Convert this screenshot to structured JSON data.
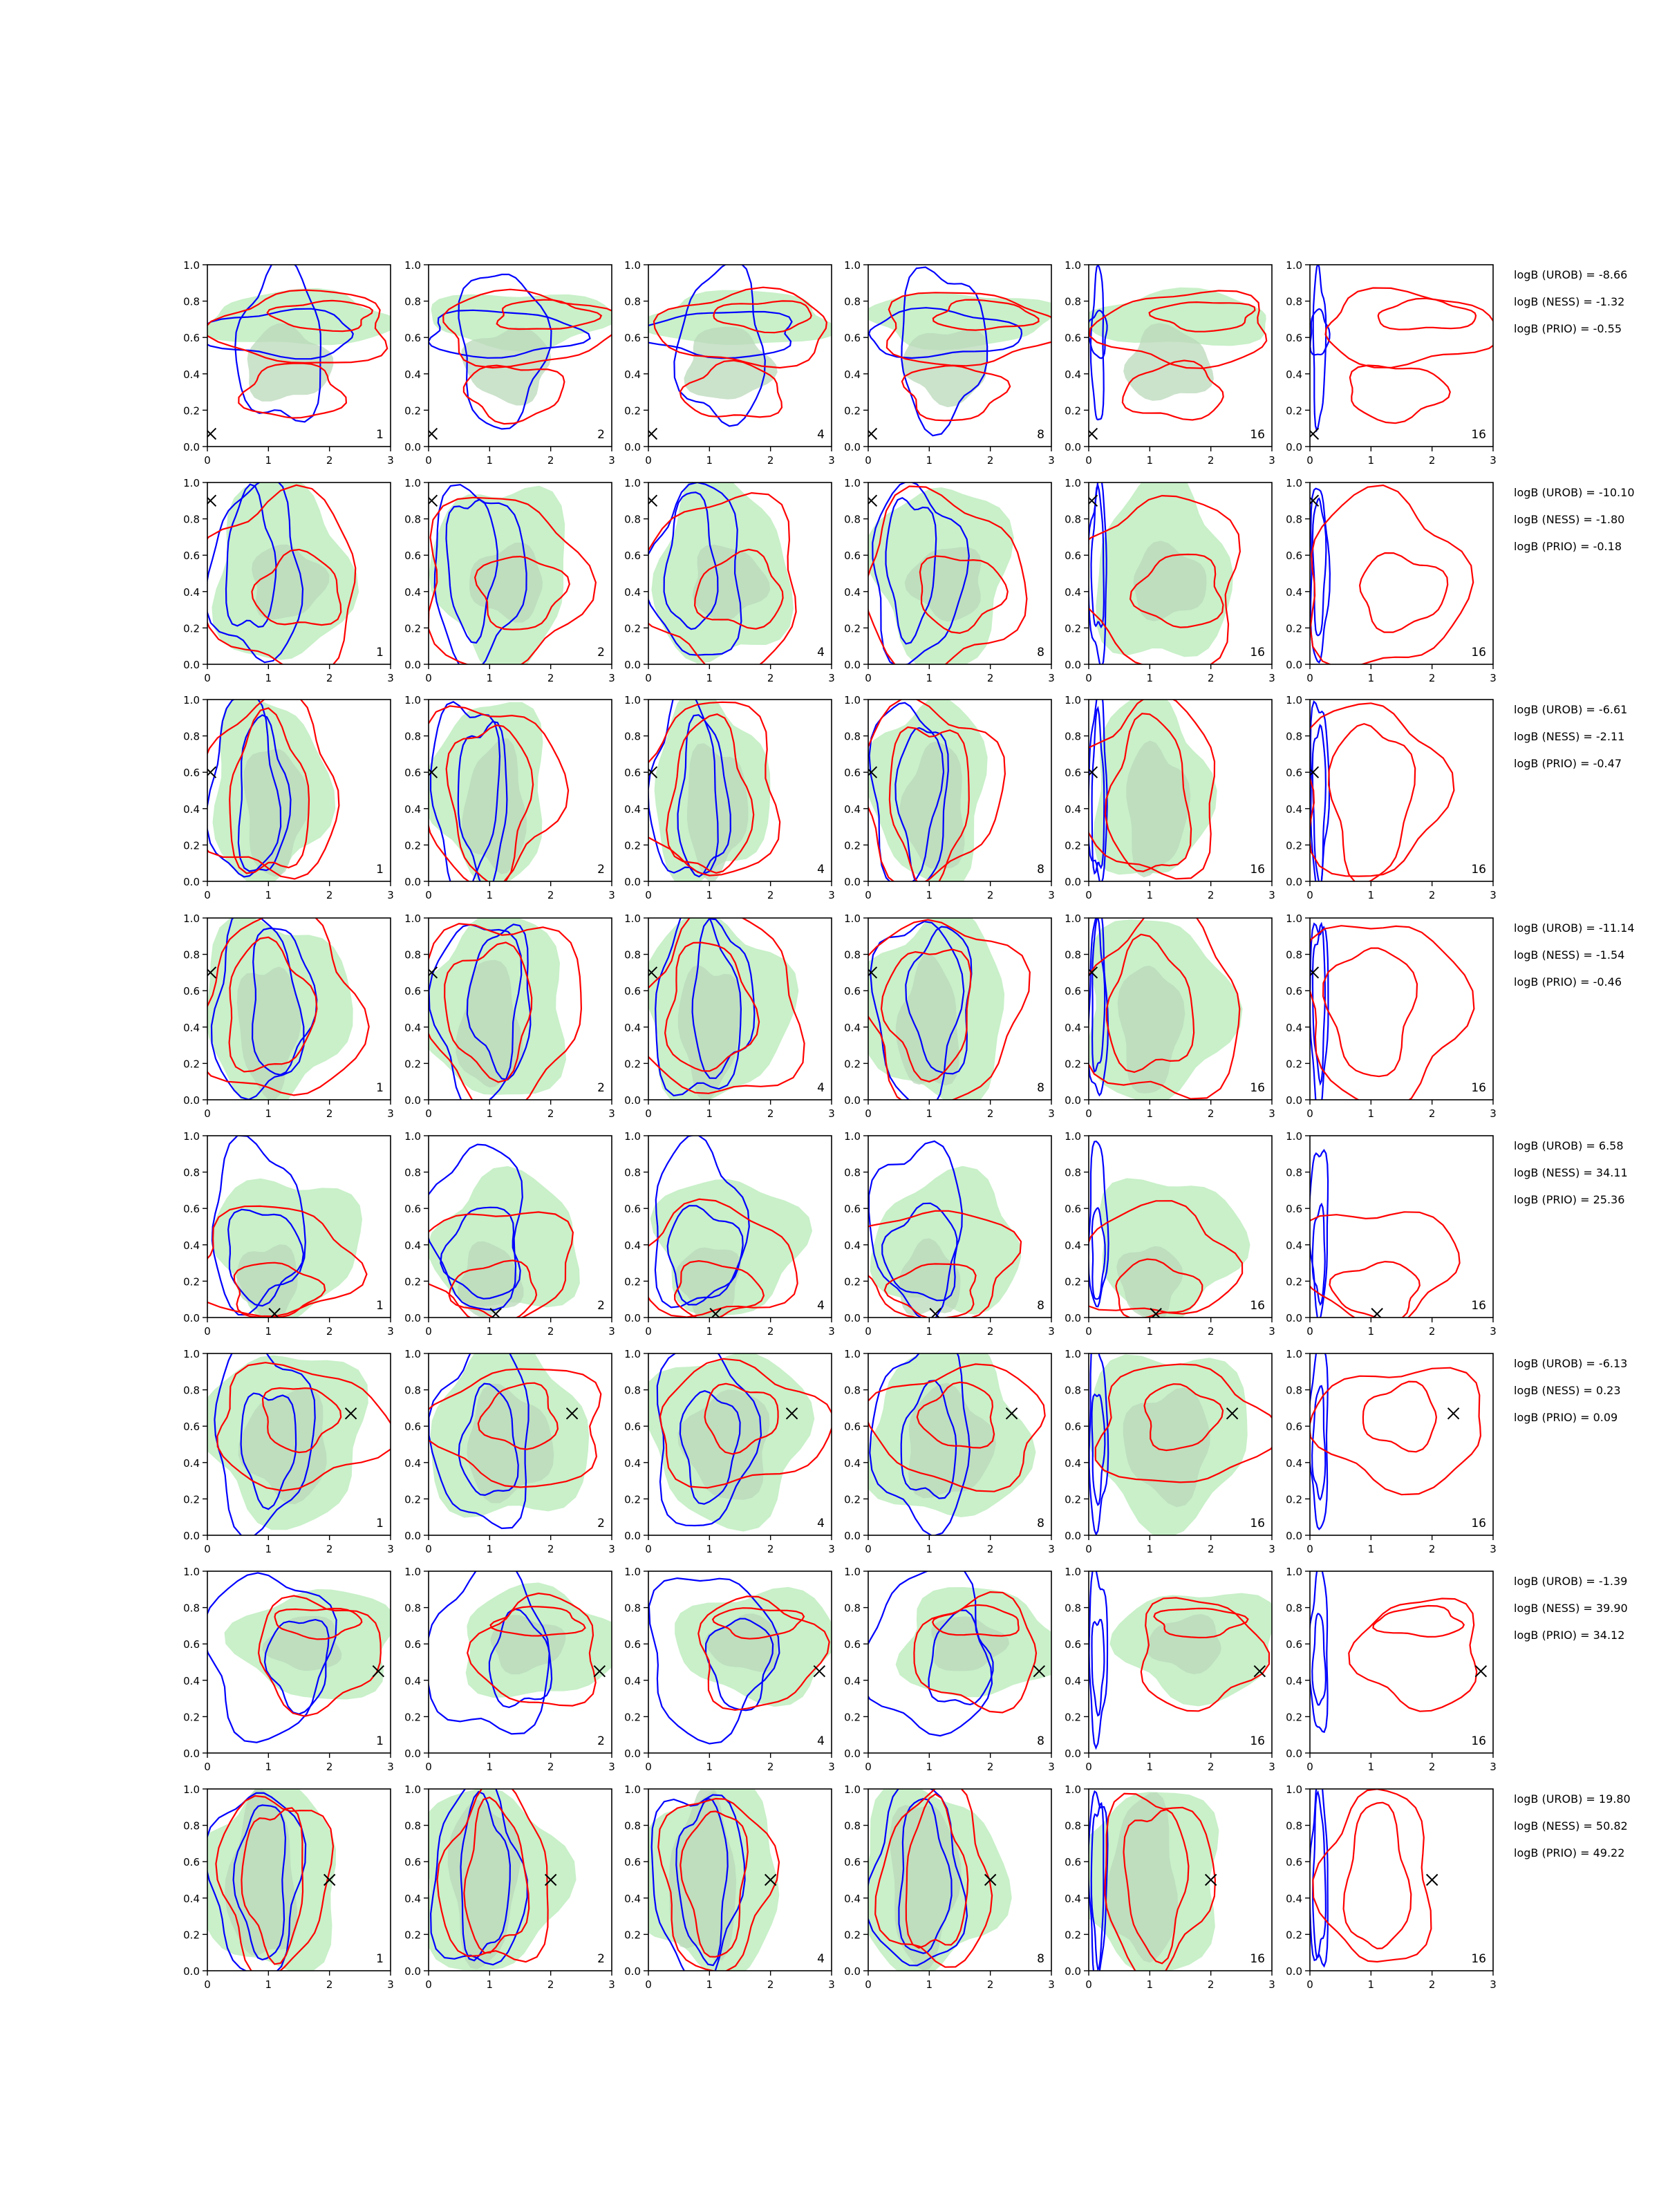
{
  "figure": {
    "panel_labels": [
      "1",
      "2",
      "4",
      "8",
      "16",
      "16"
    ]
  },
  "chart_data": {
    "type": "contour",
    "layout": "grid of 8 rows x 6 columns of 2D density contour panels",
    "xlim": [
      0,
      3
    ],
    "ylim": [
      0,
      1
    ],
    "x_ticks": [
      "0",
      "1",
      "2",
      "3"
    ],
    "y_ticks": [
      "0.0",
      "0.2",
      "0.4",
      "0.6",
      "0.8",
      "1.0"
    ],
    "colors": {
      "filled_prior": "#c6efc6",
      "filled_prior_dark": "#b9d8b9",
      "blue_contours": "#0000ff",
      "red_contours": "#ff0000",
      "marker": "#000000"
    },
    "rows": [
      {
        "marker": [
          0.05,
          0.07
        ],
        "annotations": [
          "logB (UROB) = -8.66",
          "logB (NESS) = -1.32",
          "logB (PRIO) = -0.55"
        ],
        "green": [
          {
            "cx": 1.5,
            "cy": 0.7,
            "w": 3.0,
            "h": 0.3
          },
          {
            "cx": 1.3,
            "cy": 0.45,
            "w": 1.4,
            "h": 0.4
          }
        ],
        "blue": [
          {
            "cx": 1.2,
            "cy": 0.62,
            "w": 2.5,
            "h": 0.25
          },
          {
            "cx": 1.2,
            "cy": 0.55,
            "w": 1.4,
            "h": 0.85
          }
        ],
        "red": [
          {
            "cx": 1.9,
            "cy": 0.72,
            "w": 1.6,
            "h": 0.16
          },
          {
            "cx": 1.6,
            "cy": 0.65,
            "w": 2.8,
            "h": 0.4
          },
          {
            "cx": 1.4,
            "cy": 0.3,
            "w": 1.6,
            "h": 0.3
          }
        ]
      },
      {
        "marker": [
          0.05,
          0.9
        ],
        "annotations": [
          "logB (UROB) = -10.10",
          "logB (NESS) = -1.80",
          "logB (PRIO) = -0.18"
        ],
        "green": [
          {
            "cx": 1.2,
            "cy": 0.5,
            "w": 2.2,
            "h": 1.0
          },
          {
            "cx": 1.3,
            "cy": 0.45,
            "w": 1.2,
            "h": 0.4
          }
        ],
        "blue": [
          {
            "cx": 0.8,
            "cy": 0.5,
            "w": 1.5,
            "h": 0.95
          },
          {
            "cx": 0.7,
            "cy": 0.55,
            "w": 0.8,
            "h": 0.75
          }
        ],
        "red": [
          {
            "cx": 1.2,
            "cy": 0.45,
            "w": 2.6,
            "h": 0.95
          },
          {
            "cx": 1.5,
            "cy": 0.4,
            "w": 1.4,
            "h": 0.4
          }
        ]
      },
      {
        "marker": [
          0.05,
          0.6
        ],
        "annotations": [
          "logB (UROB) = -6.61",
          "logB (NESS) = -2.11",
          "logB (PRIO) = -0.47"
        ],
        "green": [
          {
            "cx": 1.0,
            "cy": 0.5,
            "w": 1.9,
            "h": 1.0
          },
          {
            "cx": 1.1,
            "cy": 0.4,
            "w": 1.0,
            "h": 0.7
          }
        ],
        "blue": [
          {
            "cx": 0.6,
            "cy": 0.5,
            "w": 1.1,
            "h": 1.0
          },
          {
            "cx": 0.9,
            "cy": 0.45,
            "w": 0.8,
            "h": 0.85
          }
        ],
        "red": [
          {
            "cx": 1.0,
            "cy": 0.5,
            "w": 2.3,
            "h": 0.95
          },
          {
            "cx": 1.0,
            "cy": 0.45,
            "w": 1.3,
            "h": 0.85
          }
        ]
      },
      {
        "marker": [
          0.05,
          0.7
        ],
        "annotations": [
          "logB (UROB) = -11.14",
          "logB (NESS) = -1.54",
          "logB (PRIO) = -0.46"
        ],
        "green": [
          {
            "cx": 1.1,
            "cy": 0.5,
            "w": 2.4,
            "h": 1.0
          },
          {
            "cx": 1.0,
            "cy": 0.4,
            "w": 1.0,
            "h": 0.7
          }
        ],
        "blue": [
          {
            "cx": 0.8,
            "cy": 0.5,
            "w": 1.4,
            "h": 1.0
          },
          {
            "cx": 1.2,
            "cy": 0.55,
            "w": 1.0,
            "h": 0.8
          }
        ],
        "red": [
          {
            "cx": 1.2,
            "cy": 0.5,
            "w": 2.6,
            "h": 1.0
          },
          {
            "cx": 1.0,
            "cy": 0.5,
            "w": 1.4,
            "h": 0.7
          }
        ]
      },
      {
        "marker": [
          1.1,
          0.02
        ],
        "annotations": [
          "logB (UROB) = 6.58",
          "logB (NESS) = 34.11",
          "logB (PRIO) = 25.36"
        ],
        "green": [
          {
            "cx": 1.3,
            "cy": 0.4,
            "w": 2.4,
            "h": 0.75
          },
          {
            "cx": 1.0,
            "cy": 0.2,
            "w": 1.0,
            "h": 0.4
          }
        ],
        "blue": [
          {
            "cx": 0.8,
            "cy": 0.5,
            "w": 1.5,
            "h": 0.9
          },
          {
            "cx": 0.9,
            "cy": 0.35,
            "w": 1.2,
            "h": 0.5
          }
        ],
        "red": [
          {
            "cx": 1.1,
            "cy": 0.3,
            "w": 2.6,
            "h": 0.6
          },
          {
            "cx": 1.1,
            "cy": 0.15,
            "w": 1.4,
            "h": 0.3
          }
        ]
      },
      {
        "marker": [
          2.35,
          0.67
        ],
        "annotations": [
          "logB (UROB) = -6.13",
          "logB (NESS) = 0.23",
          "logB (PRIO) = 0.09"
        ],
        "green": [
          {
            "cx": 1.3,
            "cy": 0.55,
            "w": 2.6,
            "h": 0.95
          },
          {
            "cx": 1.3,
            "cy": 0.5,
            "w": 1.4,
            "h": 0.6
          }
        ],
        "blue": [
          {
            "cx": 0.9,
            "cy": 0.55,
            "w": 1.6,
            "h": 1.0
          },
          {
            "cx": 1.0,
            "cy": 0.5,
            "w": 0.9,
            "h": 0.6
          }
        ],
        "red": [
          {
            "cx": 1.5,
            "cy": 0.6,
            "w": 2.8,
            "h": 0.65
          },
          {
            "cx": 1.5,
            "cy": 0.65,
            "w": 1.2,
            "h": 0.35
          }
        ]
      },
      {
        "marker": [
          2.8,
          0.45
        ],
        "annotations": [
          "logB (UROB) = -1.39",
          "logB (NESS) = 39.90",
          "logB (PRIO) = 34.12"
        ],
        "green": [
          {
            "cx": 1.8,
            "cy": 0.6,
            "w": 2.6,
            "h": 0.6
          },
          {
            "cx": 1.6,
            "cy": 0.6,
            "w": 1.2,
            "h": 0.3
          }
        ],
        "blue": [
          {
            "cx": 1.0,
            "cy": 0.55,
            "w": 2.0,
            "h": 0.9
          },
          {
            "cx": 1.5,
            "cy": 0.5,
            "w": 1.0,
            "h": 0.5
          }
        ],
        "red": [
          {
            "cx": 1.8,
            "cy": 0.55,
            "w": 2.0,
            "h": 0.6
          },
          {
            "cx": 1.8,
            "cy": 0.72,
            "w": 1.4,
            "h": 0.16
          }
        ]
      },
      {
        "marker": [
          2.0,
          0.5
        ],
        "annotations": [
          "logB (UROB) = 19.80",
          "logB (NESS) = 50.82",
          "logB (PRIO) = 49.22"
        ],
        "green": [
          {
            "cx": 1.0,
            "cy": 0.5,
            "w": 2.4,
            "h": 1.0
          },
          {
            "cx": 0.9,
            "cy": 0.5,
            "w": 1.1,
            "h": 0.9
          }
        ],
        "blue": [
          {
            "cx": 0.8,
            "cy": 0.5,
            "w": 1.5,
            "h": 1.0
          },
          {
            "cx": 0.9,
            "cy": 0.5,
            "w": 0.8,
            "h": 0.85
          }
        ],
        "red": [
          {
            "cx": 1.1,
            "cy": 0.5,
            "w": 1.8,
            "h": 0.95
          },
          {
            "cx": 1.1,
            "cy": 0.5,
            "w": 1.0,
            "h": 0.8
          }
        ]
      }
    ],
    "column_overrides": {
      "narrow_blue_columns": [
        4,
        5
      ],
      "narrow_red_column": 5
    }
  }
}
